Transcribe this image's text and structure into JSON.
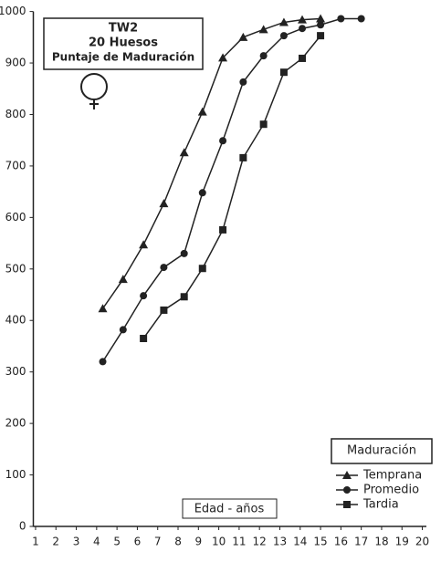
{
  "chart_data": {
    "type": "line",
    "annotations": [
      "TW2",
      "20 Huesos",
      "Puntaje de Maduración"
    ],
    "xlabel": "Edad - años",
    "legend_title": "Maduración",
    "legend": "bottom-right",
    "xlim": [
      0.8,
      20.2
    ],
    "xticks": [
      1,
      2,
      3,
      4,
      5,
      6,
      7,
      8,
      9,
      10,
      11,
      12,
      13,
      14,
      15,
      16,
      17,
      18,
      19,
      20
    ],
    "ylim": [
      0,
      1000
    ],
    "yticks": [
      0,
      100,
      200,
      300,
      400,
      500,
      600,
      700,
      800,
      900,
      1000
    ],
    "series": [
      {
        "name": "Temprana",
        "color": "#222",
        "marker": "triangle",
        "x": [
          4.3,
          5.3,
          6.3,
          7.3,
          8.3,
          9.2,
          10.2,
          11.2,
          12.2,
          13.2,
          14.1,
          15.0
        ],
        "values": [
          423,
          480,
          547,
          627,
          726,
          805,
          910,
          950,
          965,
          979,
          984,
          986
        ]
      },
      {
        "name": "Promedio",
        "color": "#222",
        "marker": "circle",
        "x": [
          4.3,
          5.3,
          6.3,
          7.3,
          8.3,
          9.2,
          10.2,
          11.2,
          12.2,
          13.2,
          14.1,
          15.0,
          16.0,
          17.0
        ],
        "values": [
          320,
          382,
          448,
          503,
          530,
          648,
          749,
          863,
          914,
          953,
          967,
          974,
          986,
          986
        ]
      },
      {
        "name": "Tardia",
        "color": "#222",
        "marker": "square",
        "x": [
          6.3,
          7.3,
          8.3,
          9.2,
          10.2,
          11.2,
          12.2,
          13.2,
          14.1,
          15.0
        ],
        "values": [
          365,
          420,
          446,
          501,
          576,
          716,
          781,
          882,
          909,
          953
        ]
      }
    ]
  }
}
